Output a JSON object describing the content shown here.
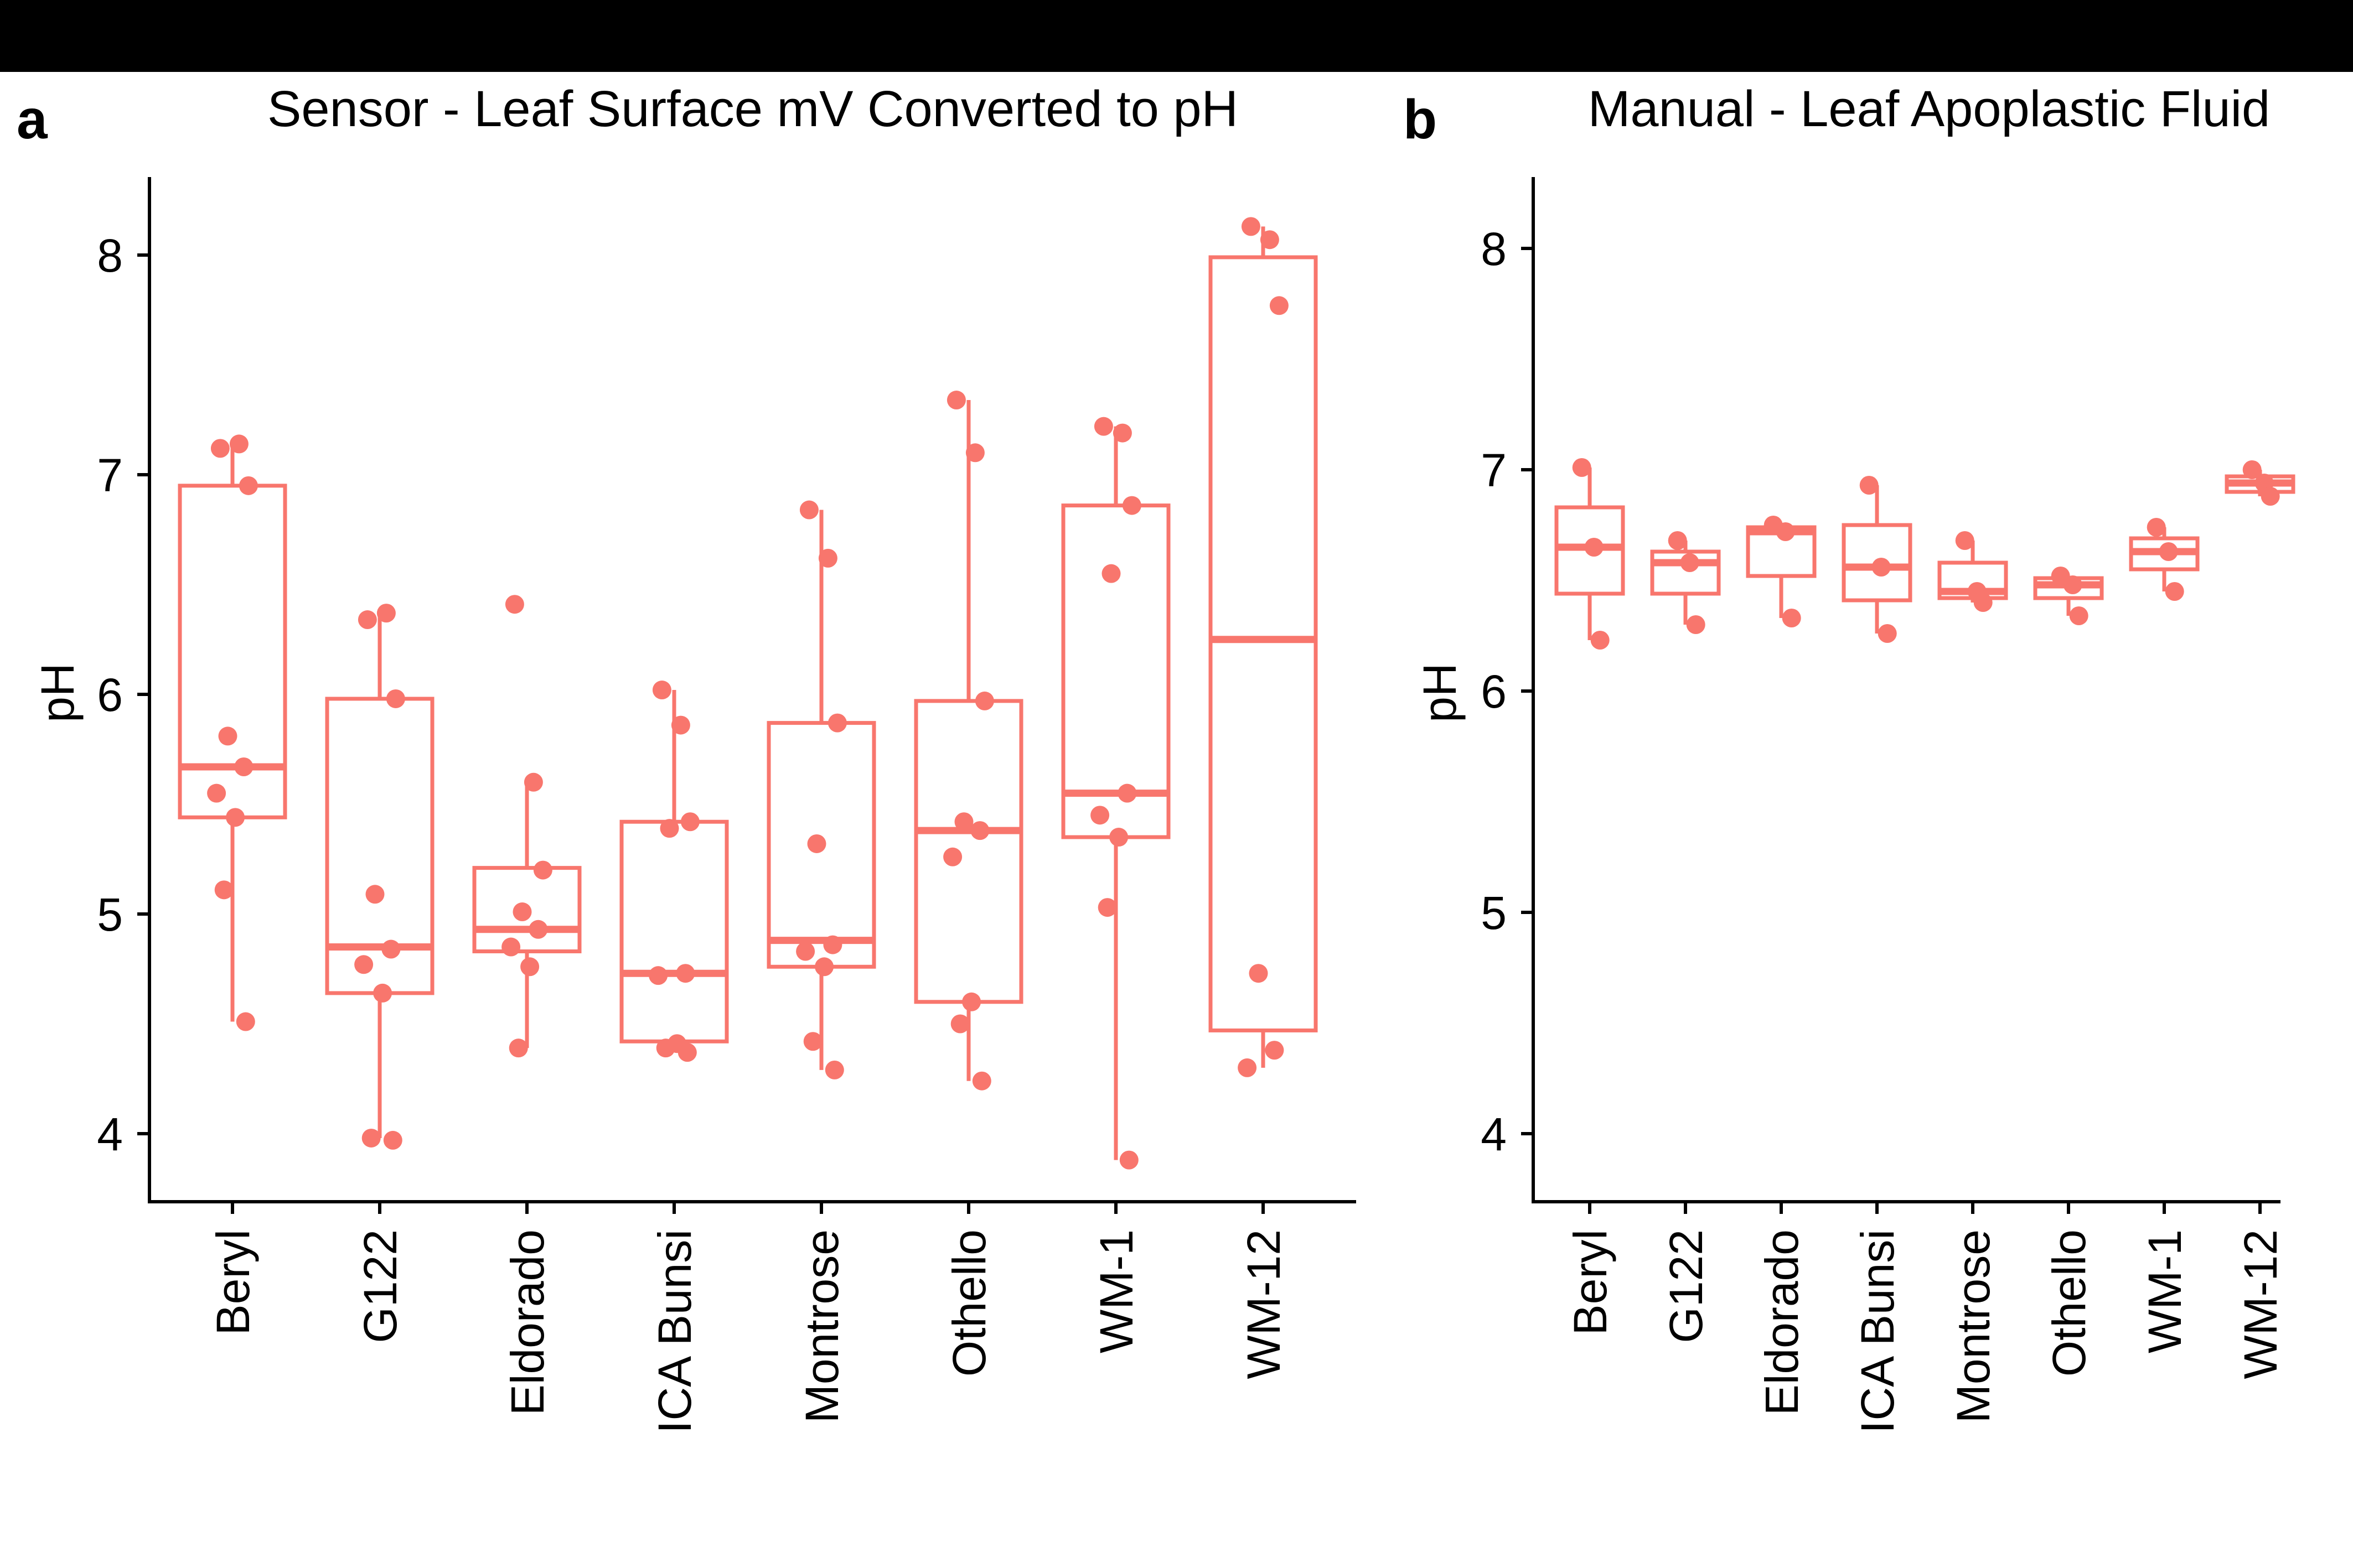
{
  "accent_color": "#f8766d",
  "panel_tags": [
    "a",
    "b"
  ],
  "chart_data": [
    {
      "type": "box",
      "title": "Sensor - Leaf Surface mV Converted to pH",
      "xlabel": "",
      "ylabel": "pH",
      "ylim": [
        3.7,
        8.33
      ],
      "yticks": [
        4,
        5,
        6,
        7,
        8
      ],
      "grid": false,
      "categories": [
        "Beryl",
        "G122",
        "Eldorado",
        "ICA Bunsi",
        "Montrose",
        "Othello",
        "WM-1",
        "WM-12"
      ],
      "boxes": [
        {
          "q1": 5.44,
          "median": 5.67,
          "q3": 6.95,
          "whisker_low": 4.51,
          "whisker_high": 7.14
        },
        {
          "q1": 4.64,
          "median": 4.85,
          "q3": 5.98,
          "whisker_low": 3.98,
          "whisker_high": 6.37
        },
        {
          "q1": 4.83,
          "median": 4.93,
          "q3": 5.21,
          "whisker_low": 4.39,
          "whisker_high": 5.6
        },
        {
          "q1": 4.42,
          "median": 4.73,
          "q3": 5.42,
          "whisker_low": 4.37,
          "whisker_high": 6.02
        },
        {
          "q1": 4.76,
          "median": 4.88,
          "q3": 5.87,
          "whisker_low": 4.29,
          "whisker_high": 6.84
        },
        {
          "q1": 4.6,
          "median": 5.38,
          "q3": 5.97,
          "whisker_low": 4.24,
          "whisker_high": 7.34
        },
        {
          "q1": 5.35,
          "median": 5.55,
          "q3": 6.86,
          "whisker_low": 3.88,
          "whisker_high": 7.22
        },
        {
          "q1": 4.47,
          "median": 6.25,
          "q3": 7.99,
          "whisker_low": 4.3,
          "whisker_high": 8.13
        }
      ],
      "points": [
        [
          7.12,
          7.14,
          6.95,
          5.81,
          5.67,
          5.55,
          5.44,
          5.11,
          4.51
        ],
        [
          6.34,
          6.37,
          5.98,
          5.09,
          4.84,
          4.77,
          4.64,
          3.98,
          3.97
        ],
        [
          6.41,
          5.6,
          5.2,
          5.01,
          4.93,
          4.85,
          4.76,
          4.39
        ],
        [
          6.02,
          5.86,
          5.42,
          5.39,
          4.73,
          4.72,
          4.41,
          4.39,
          4.37
        ],
        [
          6.84,
          6.62,
          5.87,
          5.32,
          4.86,
          4.83,
          4.76,
          4.42,
          4.29
        ],
        [
          7.34,
          7.1,
          5.97,
          5.42,
          5.38,
          5.26,
          4.6,
          4.5,
          4.24
        ],
        [
          7.22,
          7.19,
          6.86,
          6.55,
          5.55,
          5.45,
          5.35,
          5.03,
          3.88
        ],
        [
          8.13,
          8.07,
          7.77,
          4.73,
          4.38,
          4.3
        ]
      ]
    },
    {
      "type": "box",
      "title": "Manual - Leaf Apoplastic Fluid",
      "xlabel": "",
      "ylabel": "pH",
      "ylim": [
        3.7,
        8.3
      ],
      "yticks": [
        4,
        5,
        6,
        7,
        8
      ],
      "grid": false,
      "categories": [
        "Beryl",
        "G122",
        "Eldorado",
        "ICA Bunsi",
        "Montrose",
        "Othello",
        "WM-1",
        "WM-12"
      ],
      "boxes": [
        {
          "q1": 6.44,
          "median": 6.65,
          "q3": 6.83,
          "whisker_low": 6.23,
          "whisker_high": 7.01
        },
        {
          "q1": 6.44,
          "median": 6.58,
          "q3": 6.63,
          "whisker_low": 6.3,
          "whisker_high": 6.68
        },
        {
          "q1": 6.52,
          "median": 6.72,
          "q3": 6.74,
          "whisker_low": 6.33,
          "whisker_high": 6.75
        },
        {
          "q1": 6.41,
          "median": 6.56,
          "q3": 6.75,
          "whisker_low": 6.26,
          "whisker_high": 6.93
        },
        {
          "q1": 6.42,
          "median": 6.45,
          "q3": 6.58,
          "whisker_low": 6.4,
          "whisker_high": 6.68
        },
        {
          "q1": 6.42,
          "median": 6.48,
          "q3": 6.51,
          "whisker_low": 6.34,
          "whisker_high": 6.52
        },
        {
          "q1": 6.55,
          "median": 6.63,
          "q3": 6.69,
          "whisker_low": 6.45,
          "whisker_high": 6.74
        },
        {
          "q1": 6.9,
          "median": 6.94,
          "q3": 6.97,
          "whisker_low": 6.88,
          "whisker_high": 7.0
        }
      ],
      "points": [
        [
          7.01,
          6.65,
          6.23
        ],
        [
          6.68,
          6.58,
          6.3
        ],
        [
          6.75,
          6.72,
          6.33
        ],
        [
          6.93,
          6.56,
          6.26
        ],
        [
          6.68,
          6.45,
          6.4
        ],
        [
          6.52,
          6.48,
          6.34
        ],
        [
          6.74,
          6.63,
          6.45
        ],
        [
          7.0,
          6.94,
          6.88
        ]
      ]
    }
  ]
}
